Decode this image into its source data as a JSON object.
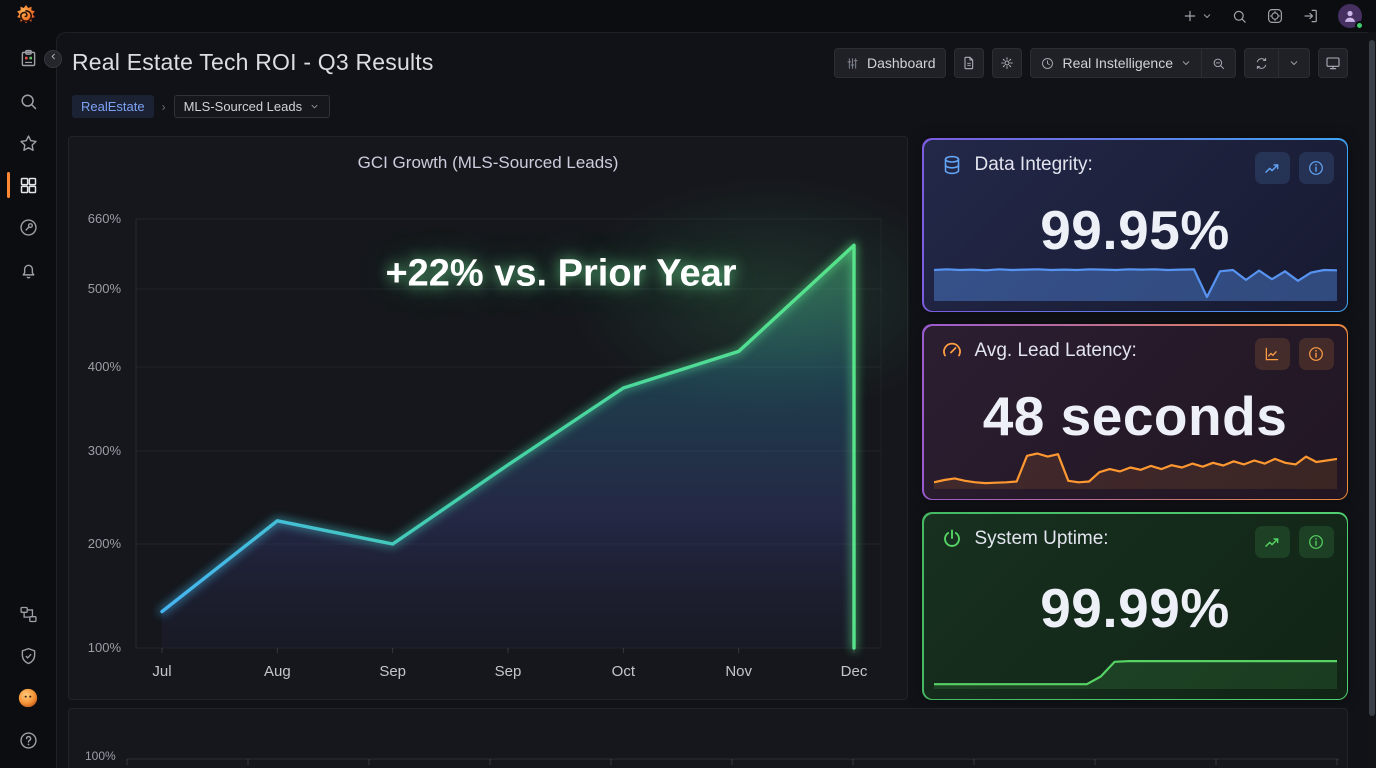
{
  "topbar": {
    "icons": [
      "plus",
      "search",
      "apps",
      "sign-in",
      "profile"
    ]
  },
  "sidebar": {
    "items": [
      "bookmarks",
      "search",
      "starred",
      "dashboards",
      "irm",
      "alerting",
      "connections",
      "administration",
      "grot-assistant",
      "help"
    ]
  },
  "header": {
    "title": "Real Estate Tech ROI - Q3 Results",
    "toolbar": {
      "dashboard_label": "Dashboard",
      "time_range_label": "Real Instelligence"
    }
  },
  "breadcrumb": {
    "root": "RealEstate",
    "current": "MLS-Sourced Leads"
  },
  "chart_data": [
    {
      "type": "line",
      "title": "GCI Growth (MLS-Sourced Leads)",
      "annotation": "+22% vs. Prior Year",
      "x": [
        "Jul",
        "Aug",
        "Sep",
        "Sep",
        "Oct",
        "Nov",
        "Dec"
      ],
      "values_pct": [
        135,
        225,
        200,
        285,
        375,
        420,
        600
      ],
      "ytick_labels": [
        "660%",
        "500%",
        "400%",
        "300%",
        "200%",
        "100%"
      ],
      "ylim": [
        100,
        660
      ],
      "unit": "%",
      "grid": true,
      "legend": false,
      "scale_note": "non-linear (log-like) y axis",
      "line_gradient": [
        "#45b5f2",
        "#57e389"
      ]
    },
    {
      "type": "area",
      "name": "data-integrity-sparkline",
      "color": "#5794F2",
      "values": [
        88,
        90,
        88,
        89,
        87,
        90,
        88,
        89,
        90,
        88,
        89,
        88,
        90,
        89,
        88,
        90,
        89,
        90,
        88,
        89,
        90,
        6,
        84,
        88,
        58,
        86,
        60,
        84,
        55,
        80,
        88,
        87
      ]
    },
    {
      "type": "area",
      "name": "lead-latency-sparkline",
      "color": "#FF9830",
      "values": [
        12,
        18,
        22,
        16,
        12,
        10,
        11,
        12,
        14,
        80,
        86,
        78,
        84,
        16,
        12,
        14,
        38,
        46,
        40,
        50,
        44,
        54,
        46,
        56,
        50,
        60,
        52,
        62,
        55,
        66,
        58,
        68,
        60,
        72,
        62,
        58,
        78,
        64,
        68,
        72
      ]
    },
    {
      "type": "area",
      "name": "system-uptime-sparkline",
      "color": "#56d364",
      "values": [
        8,
        8,
        8,
        8,
        8,
        8,
        8,
        8,
        8,
        8,
        8,
        8,
        30,
        72,
        74,
        74,
        74,
        74,
        74,
        74,
        74,
        74,
        74,
        74,
        74,
        74,
        74,
        74,
        74,
        74
      ]
    }
  ],
  "stat_panels": [
    {
      "title": "Data Integrity:",
      "value": "99.95%",
      "icon": "database",
      "accent": "#63a5f6",
      "border_from": "#7c5ce0",
      "border_to": "#3fa4f4",
      "bg_from": "#232849",
      "bg_to": "#171a30",
      "fill_opacity": 0.4,
      "trend_icon": "trend-up"
    },
    {
      "title": "Avg. Lead Latency:",
      "value": "48 seconds",
      "icon": "gauge",
      "accent": "#ff9d45",
      "border_from": "#9a5bd0",
      "border_to": "#ef8b3c",
      "bg_from": "#2b1e31",
      "bg_to": "#211622",
      "fill_opacity": 0.12,
      "trend_icon": "chart-line"
    },
    {
      "title": "System Uptime:",
      "value": "99.99%",
      "icon": "power",
      "accent": "#56d364",
      "border_from": "#46b864",
      "border_to": "#52cf70",
      "bg_from": "#17301f",
      "bg_to": "#112416",
      "fill_opacity": 0.14,
      "trend_icon": "trend-up"
    }
  ],
  "bottom_panel": {
    "ytick": "100%"
  }
}
